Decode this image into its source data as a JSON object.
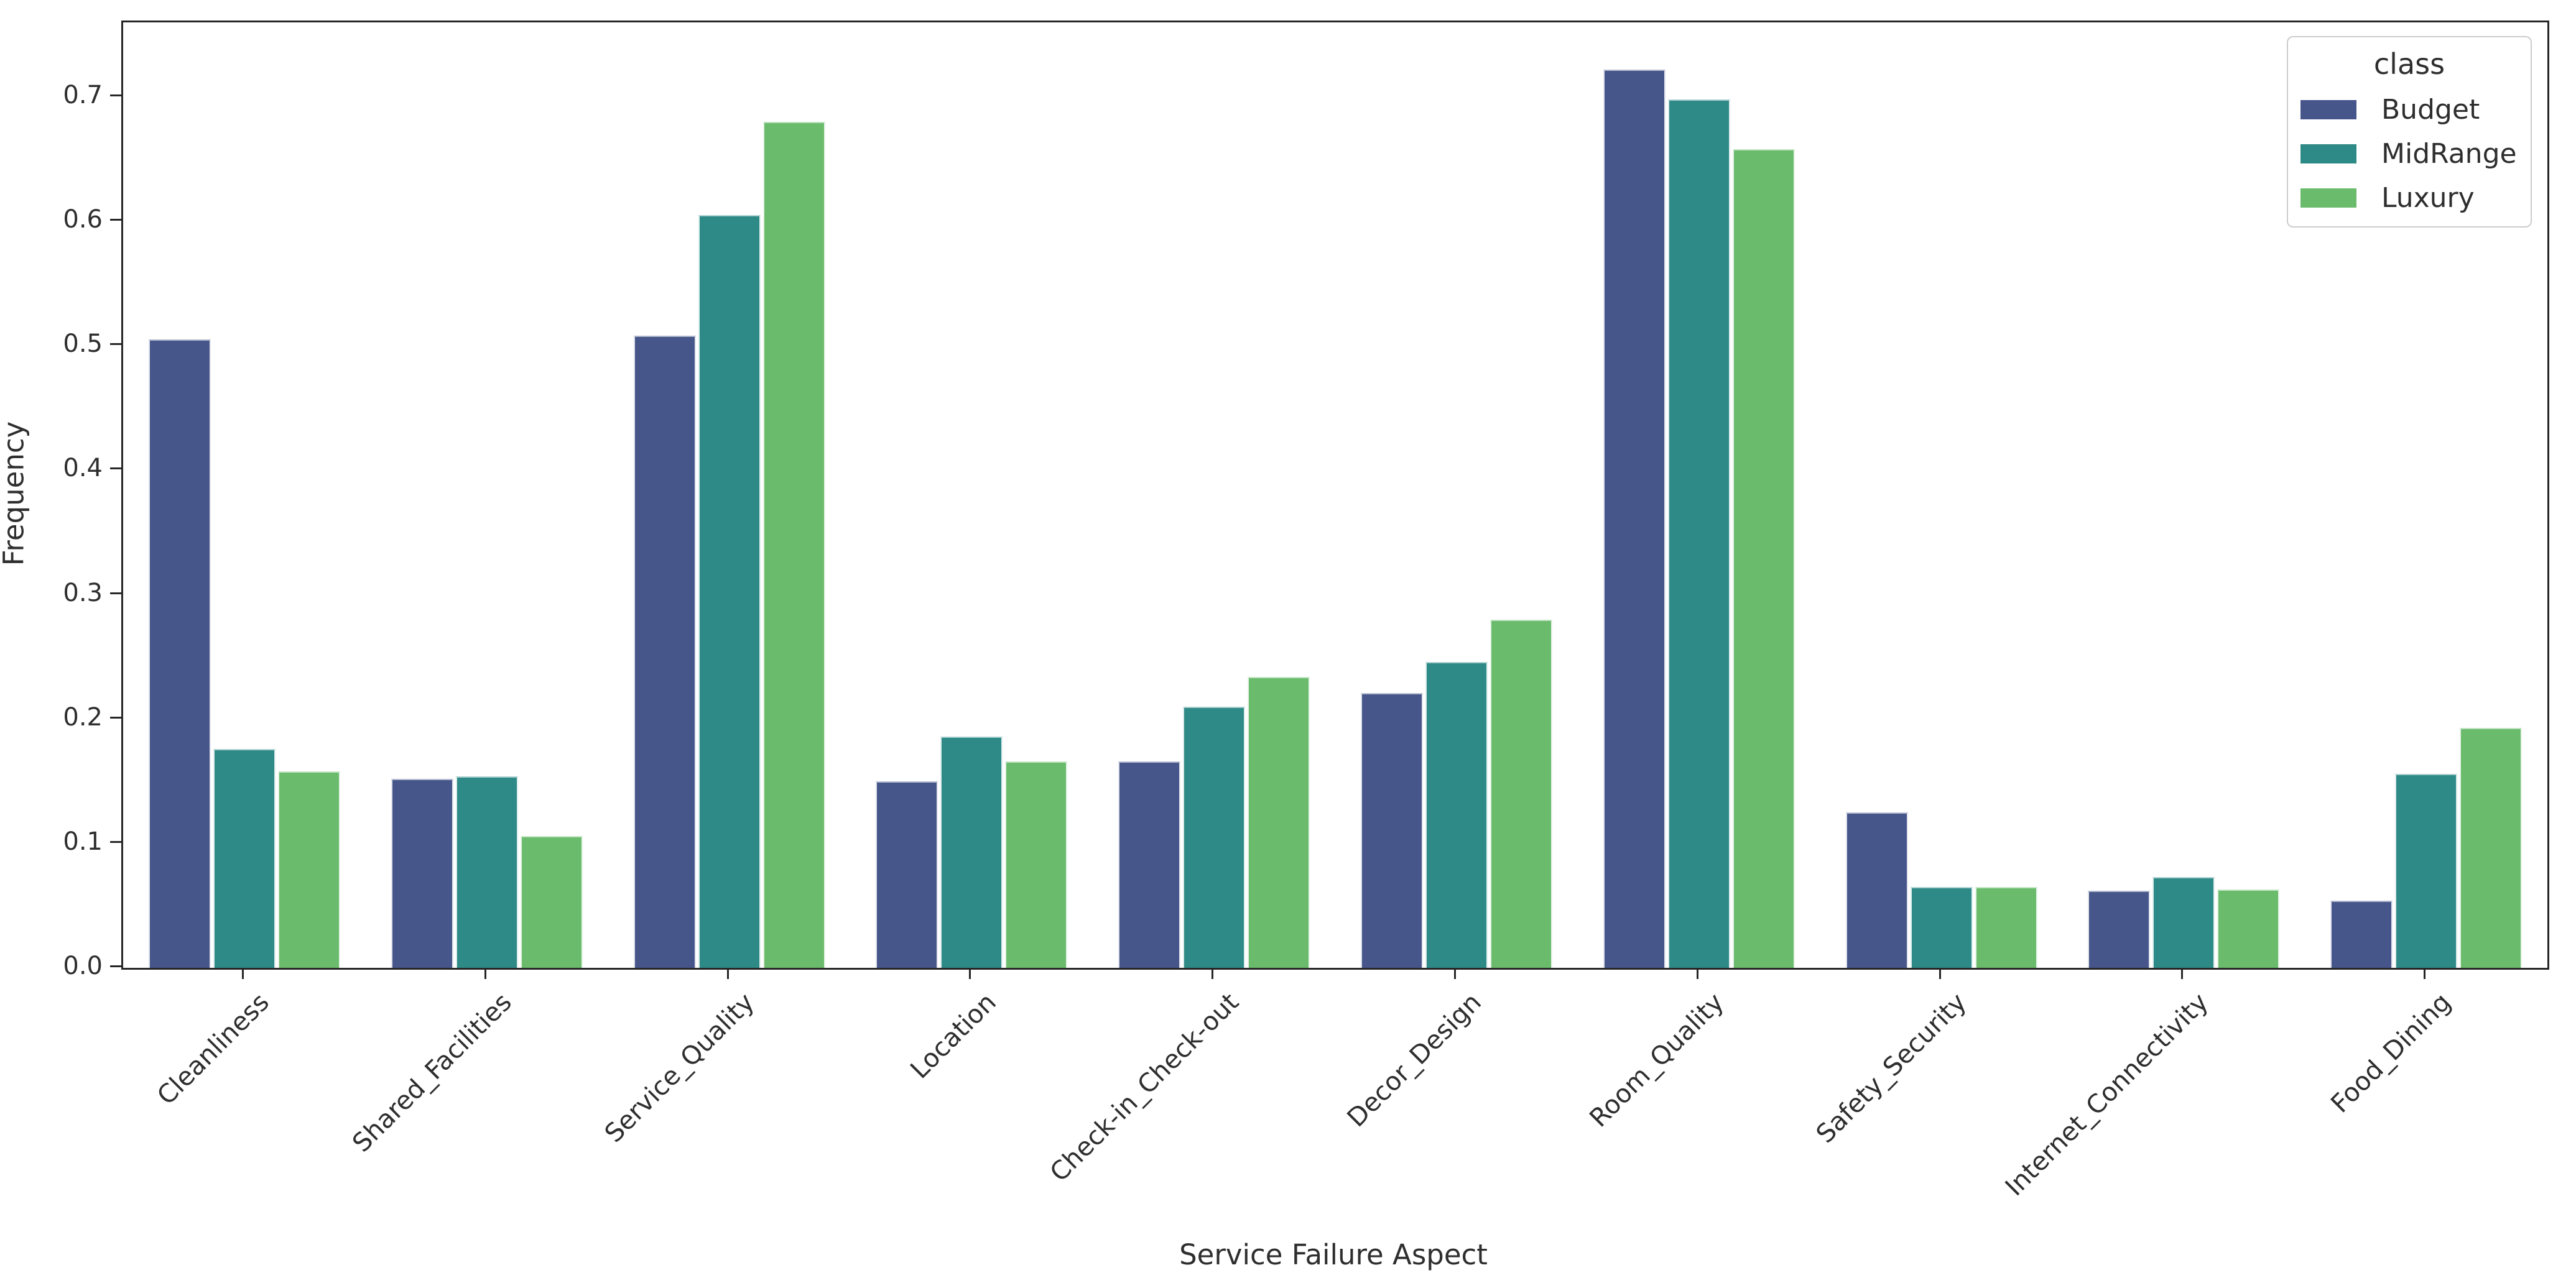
{
  "chart_data": {
    "type": "bar",
    "title": "",
    "xlabel": "Service Failure Aspect",
    "ylabel": "Frequency",
    "categories": [
      "Cleanliness",
      "Shared_Facilities",
      "Service_Quality",
      "Location",
      "Check-in_Check-out",
      "Decor_Design",
      "Room_Quality",
      "Safety_Security",
      "Internet_Connectivity",
      "Food_Dining"
    ],
    "series": [
      {
        "name": "Budget",
        "color": "#46568a",
        "values": [
          0.505,
          0.152,
          0.508,
          0.15,
          0.166,
          0.221,
          0.722,
          0.125,
          0.062,
          0.054
        ]
      },
      {
        "name": "MidRange",
        "color": "#2e8a86",
        "values": [
          0.176,
          0.154,
          0.605,
          0.186,
          0.21,
          0.246,
          0.698,
          0.065,
          0.073,
          0.156
        ]
      },
      {
        "name": "Luxury",
        "color": "#6abb6c",
        "values": [
          0.158,
          0.106,
          0.68,
          0.166,
          0.234,
          0.28,
          0.658,
          0.065,
          0.063,
          0.193
        ]
      }
    ],
    "ylim": [
      0,
      0.76
    ],
    "yticks": [
      0.0,
      0.1,
      0.2,
      0.3,
      0.4,
      0.5,
      0.6,
      0.7
    ],
    "ytick_labels": [
      "0.0",
      "0.1",
      "0.2",
      "0.3",
      "0.4",
      "0.5",
      "0.6",
      "0.7"
    ],
    "grid": "off",
    "legend": {
      "title": "class",
      "position": "upper right",
      "entries": [
        "Budget",
        "MidRange",
        "Luxury"
      ]
    },
    "frame_color": "#262626",
    "text_color": "#2e2e2e"
  }
}
